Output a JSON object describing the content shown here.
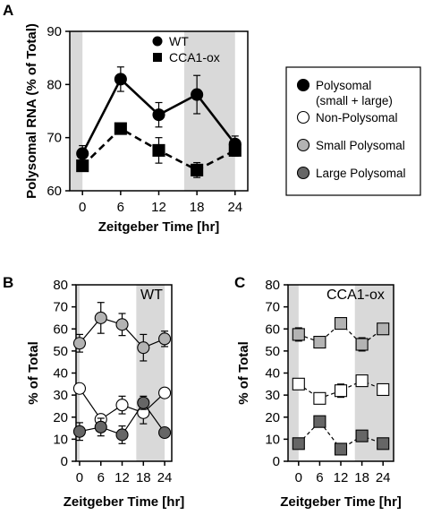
{
  "panel_letters": [
    "A",
    "B",
    "C"
  ],
  "legend_box": {
    "entries": [
      {
        "label_lines": [
          "Polysomal",
          "(small + large)"
        ],
        "marker": "circle",
        "fill": "#000000"
      },
      {
        "label_lines": [
          "Non-Polysomal"
        ],
        "marker": "circle",
        "fill": "#ffffff"
      },
      {
        "label_lines": [
          "Small Polysomal"
        ],
        "marker": "circle",
        "fill": "#b3b3b3"
      },
      {
        "label_lines": [
          "Large Polysomal"
        ],
        "marker": "circle",
        "fill": "#666666"
      }
    ]
  },
  "colors": {
    "night_shade": "#d9d9d9",
    "polysomal": "#000000",
    "non_polysomal": "#ffffff",
    "small_polysomal": "#b3b3b3",
    "large_polysomal": "#666666"
  },
  "chart_data": [
    {
      "panel": "A",
      "type": "line",
      "title": "",
      "xlabel": "Zeitgeber Time [hr]",
      "ylabel": "Polysomal RNA (% of Total)",
      "x": [
        0,
        6,
        12,
        18,
        24
      ],
      "xlim": [
        -2,
        26
      ],
      "ylim": [
        60,
        90
      ],
      "yticks": [
        60,
        70,
        80,
        90
      ],
      "xticks": [
        0,
        6,
        12,
        18,
        24
      ],
      "shaded_x": [
        [
          -2,
          0
        ],
        [
          16,
          24
        ]
      ],
      "legend": "top-center",
      "series": [
        {
          "name": "WT",
          "marker": "circle",
          "fill": "#000000",
          "line": "solid",
          "values": [
            67,
            81,
            74.3,
            78.1,
            68.8
          ],
          "errors": [
            1.5,
            2.3,
            2.3,
            3.6,
            1.5
          ]
        },
        {
          "name": "CCA1-ox",
          "marker": "square",
          "fill": "#000000",
          "line": "dashed",
          "values": [
            64.7,
            71.7,
            67.6,
            63.9,
            67.6
          ],
          "errors": [
            0.8,
            1.0,
            2.4,
            1.4,
            1.1
          ]
        }
      ]
    },
    {
      "panel": "B",
      "type": "line",
      "title": "",
      "annotation": "WT",
      "xlabel": "Zeitgeber Time [hr]",
      "ylabel": "% of Total",
      "x": [
        0,
        6,
        12,
        18,
        24
      ],
      "xlim": [
        -1,
        26
      ],
      "ylim": [
        0,
        80
      ],
      "yticks": [
        0,
        10,
        20,
        30,
        40,
        50,
        60,
        70,
        80
      ],
      "xticks": [
        0,
        6,
        12,
        18,
        24
      ],
      "shaded_x": [
        [
          -1,
          0
        ],
        [
          16,
          24
        ]
      ],
      "series": [
        {
          "category": "Small Polysomal",
          "marker": "circle",
          "fill": "#b3b3b3",
          "line": "solid",
          "values": [
            53.5,
            65,
            62,
            51.5,
            55.5
          ],
          "errors": [
            4,
            7,
            5,
            6,
            3.5
          ]
        },
        {
          "category": "Non-Polysomal",
          "marker": "circle",
          "fill": "#ffffff",
          "line": "solid",
          "values": [
            33,
            19,
            25.5,
            22,
            31
          ],
          "errors": [
            2,
            2,
            4,
            5,
            2
          ]
        },
        {
          "category": "Large Polysomal",
          "marker": "circle",
          "fill": "#666666",
          "line": "solid",
          "values": [
            13.5,
            15.5,
            12,
            26.5,
            13
          ],
          "errors": [
            4,
            4,
            4,
            3,
            2
          ]
        }
      ]
    },
    {
      "panel": "C",
      "type": "line",
      "title": "",
      "annotation": "CCA1-ox",
      "xlabel": "Zeitgeber Time [hr]",
      "ylabel": "% of Total",
      "x": [
        0,
        6,
        12,
        18,
        24
      ],
      "xlim": [
        -3,
        27
      ],
      "ylim": [
        0,
        80
      ],
      "yticks": [
        0,
        10,
        20,
        30,
        40,
        50,
        60,
        70,
        80
      ],
      "xticks": [
        0,
        6,
        12,
        18,
        24
      ],
      "shaded_x": [
        [
          -3,
          0
        ],
        [
          16,
          27
        ]
      ],
      "series": [
        {
          "category": "Small Polysomal",
          "marker": "square",
          "fill": "#b3b3b3",
          "line": "dashed",
          "values": [
            57.5,
            54,
            62.5,
            53,
            60
          ],
          "errors": [
            3,
            1.5,
            2.5,
            3,
            1.5
          ]
        },
        {
          "category": "Non-Polysomal",
          "marker": "square",
          "fill": "#ffffff",
          "line": "dashed",
          "values": [
            35,
            28.5,
            32,
            36.5,
            32.5
          ],
          "errors": [
            1.5,
            1.5,
            3,
            2,
            1.5
          ]
        },
        {
          "category": "Large Polysomal",
          "marker": "square",
          "fill": "#666666",
          "line": "dashed",
          "values": [
            8,
            18,
            5.5,
            11.5,
            8
          ],
          "errors": [
            1,
            1,
            2,
            1.5,
            1
          ]
        }
      ]
    }
  ]
}
